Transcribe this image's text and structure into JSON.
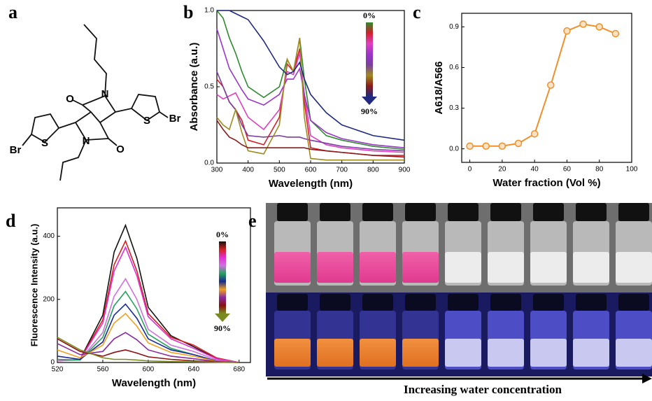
{
  "panel_labels": [
    "a",
    "b",
    "c",
    "d",
    "e"
  ],
  "structure": {
    "atoms": [
      "O",
      "N",
      "S",
      "Br",
      "S",
      "Br",
      "N",
      "O"
    ]
  },
  "photo": {
    "caption": "Increasing water concentration"
  },
  "chart_data": [
    {
      "type": "line",
      "x_label": "Wavelength (nm)",
      "y_label": "Absorbance (a.u.)",
      "gradient_legend": {
        "top": "0%",
        "bottom": "90%"
      },
      "x": [
        300,
        320,
        340,
        360,
        380,
        400,
        450,
        500,
        525,
        545,
        565,
        580,
        600,
        650,
        700,
        800,
        900
      ],
      "xlim": [
        300,
        900
      ],
      "xticks": [
        300,
        400,
        500,
        600,
        700,
        800,
        900
      ],
      "ylim": [
        0,
        1.0
      ],
      "yticks": [
        {
          "value": 0,
          "label": "0.0"
        },
        {
          "value": 0.5,
          "label": "0.5"
        },
        {
          "value": 1.0,
          "label": "1.0"
        }
      ],
      "series": [
        {
          "color": "#2e8b2e",
          "values": [
            1.0,
            0.95,
            0.82,
            0.72,
            0.6,
            0.5,
            0.43,
            0.5,
            0.68,
            0.6,
            0.82,
            0.55,
            0.28,
            0.18,
            0.15,
            0.11,
            0.09
          ]
        },
        {
          "color": "#d0202a",
          "values": [
            0.55,
            0.5,
            0.4,
            0.35,
            0.28,
            0.15,
            0.12,
            0.3,
            0.65,
            0.6,
            0.75,
            0.4,
            0.1,
            0.08,
            0.07,
            0.05,
            0.05
          ]
        },
        {
          "color": "#e040c0",
          "values": [
            0.45,
            0.42,
            0.44,
            0.46,
            0.38,
            0.3,
            0.22,
            0.35,
            0.6,
            0.58,
            0.72,
            0.45,
            0.18,
            0.12,
            0.1,
            0.08,
            0.07
          ]
        },
        {
          "color": "#9a35c8",
          "values": [
            0.88,
            0.75,
            0.62,
            0.55,
            0.48,
            0.42,
            0.38,
            0.45,
            0.55,
            0.55,
            0.62,
            0.45,
            0.28,
            0.2,
            0.16,
            0.12,
            0.1
          ]
        },
        {
          "color": "#7a3fa0",
          "values": [
            0.6,
            0.5,
            0.4,
            0.35,
            0.25,
            0.18,
            0.17,
            0.18,
            0.17,
            0.17,
            0.17,
            0.16,
            0.15,
            0.13,
            0.11,
            0.09,
            0.08
          ]
        },
        {
          "color": "#a08a20",
          "values": [
            0.3,
            0.25,
            0.22,
            0.35,
            0.2,
            0.08,
            0.06,
            0.25,
            0.68,
            0.6,
            0.82,
            0.3,
            0.03,
            0.02,
            0.02,
            0.02,
            0.02
          ]
        },
        {
          "color": "#8b1a1a",
          "values": [
            0.28,
            0.22,
            0.17,
            0.15,
            0.12,
            0.1,
            0.1,
            0.1,
            0.1,
            0.1,
            0.1,
            0.1,
            0.09,
            0.08,
            0.07,
            0.05,
            0.04
          ]
        },
        {
          "color": "#1f2a80",
          "values": [
            1.0,
            1.0,
            1.0,
            0.98,
            0.96,
            0.94,
            0.8,
            0.63,
            0.58,
            0.6,
            0.66,
            0.55,
            0.45,
            0.33,
            0.25,
            0.18,
            0.15
          ]
        }
      ]
    },
    {
      "type": "line",
      "markers": true,
      "x_label": "Water fraction (Vol %)",
      "y_label": "A618/A566",
      "x": [
        0,
        10,
        20,
        30,
        40,
        50,
        60,
        70,
        80,
        90
      ],
      "xlim": [
        -5,
        100
      ],
      "xticks": [
        0,
        20,
        40,
        60,
        80,
        100
      ],
      "ylim": [
        -0.1,
        1.0
      ],
      "yticks": [
        {
          "value": 0,
          "label": "0.0"
        },
        {
          "value": 0.3,
          "label": "0.3"
        },
        {
          "value": 0.6,
          "label": "0.6"
        },
        {
          "value": 0.9,
          "label": "0.9"
        }
      ],
      "series": [
        {
          "color": "#f0902a",
          "values": [
            0.02,
            0.02,
            0.02,
            0.04,
            0.11,
            0.47,
            0.87,
            0.92,
            0.9,
            0.85
          ]
        }
      ]
    },
    {
      "type": "line",
      "x_label": "Wavelength (nm)",
      "y_label": "Fluorescence Intensity (a.u.)",
      "gradient_legend": {
        "top": "0%",
        "bottom": "90%"
      },
      "x": [
        520,
        540,
        560,
        570,
        580,
        590,
        600,
        620,
        640,
        660,
        680
      ],
      "xlim": [
        520,
        690
      ],
      "xticks": [
        520,
        560,
        600,
        640,
        680
      ],
      "ylim": [
        0,
        490
      ],
      "yticks": [
        0,
        200,
        400
      ],
      "series": [
        {
          "color": "#111111",
          "values": [
            5,
            10,
            150,
            350,
            435,
            330,
            175,
            85,
            50,
            12,
            0
          ]
        },
        {
          "color": "#d42020",
          "values": [
            5,
            10,
            135,
            310,
            385,
            290,
            155,
            80,
            55,
            15,
            0
          ]
        },
        {
          "color": "#e02fd0",
          "values": [
            5,
            10,
            125,
            290,
            365,
            275,
            145,
            75,
            45,
            12,
            0
          ]
        },
        {
          "color": "#d070e0",
          "values": [
            5,
            8,
            95,
            210,
            265,
            200,
            105,
            55,
            35,
            8,
            0
          ]
        },
        {
          "color": "#2aa060",
          "values": [
            10,
            8,
            80,
            180,
            225,
            170,
            90,
            45,
            25,
            5,
            0
          ]
        },
        {
          "color": "#1a2a90",
          "values": [
            20,
            10,
            65,
            150,
            185,
            140,
            75,
            40,
            25,
            5,
            0
          ]
        },
        {
          "color": "#f0a020",
          "values": [
            40,
            15,
            55,
            125,
            155,
            115,
            62,
            32,
            20,
            4,
            0
          ]
        },
        {
          "color": "#8a2aa0",
          "values": [
            60,
            25,
            35,
            75,
            95,
            72,
            40,
            20,
            12,
            3,
            0
          ]
        },
        {
          "color": "#8b1010",
          "values": [
            75,
            35,
            20,
            32,
            40,
            30,
            18,
            10,
            5,
            2,
            0
          ]
        },
        {
          "color": "#7a8a20",
          "values": [
            80,
            40,
            15,
            10,
            10,
            8,
            5,
            3,
            2,
            1,
            0
          ]
        }
      ]
    }
  ]
}
